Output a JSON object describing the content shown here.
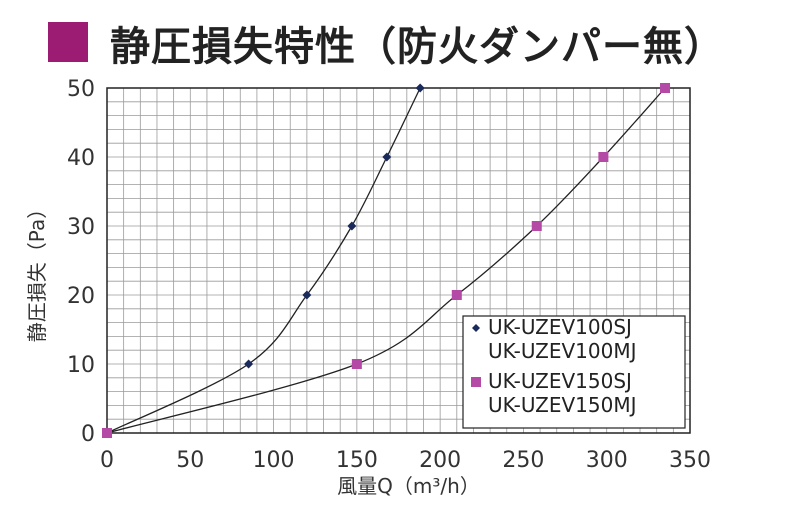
{
  "title": "静圧損失特性（防火ダンパー無）",
  "colors": {
    "accent": "#9c1b73",
    "series1": "#1a2a5a",
    "series2": "#b54aa6",
    "grid": "#9a9a9a"
  },
  "chart_data": {
    "type": "line",
    "xlabel": "風量Q（m³/h）",
    "ylabel": "静圧損失（Pa）",
    "xlim": [
      0,
      350
    ],
    "ylim": [
      0,
      50
    ],
    "xticks": [
      0,
      50,
      100,
      150,
      200,
      250,
      300,
      350
    ],
    "yticks": [
      0,
      10,
      20,
      30,
      40,
      50
    ],
    "xtick_labels": [
      "0",
      "50",
      "100",
      "150",
      "200",
      "250",
      "300",
      "350"
    ],
    "ytick_labels": [
      "0",
      "10",
      "20",
      "30",
      "40",
      "50"
    ],
    "grid": true,
    "legend": "bottom-right",
    "series": [
      {
        "name_lines": [
          "UK-UZEV100SJ",
          "UK-UZEV100MJ"
        ],
        "marker": "diamond",
        "color": "#1a2a5a",
        "points": [
          [
            0,
            0
          ],
          [
            85,
            10
          ],
          [
            120,
            20
          ],
          [
            147,
            30
          ],
          [
            168,
            40
          ],
          [
            188,
            50
          ]
        ]
      },
      {
        "name_lines": [
          "UK-UZEV150SJ",
          "UK-UZEV150MJ"
        ],
        "marker": "square",
        "color": "#b54aa6",
        "points": [
          [
            0,
            0
          ],
          [
            150,
            10
          ],
          [
            210,
            20
          ],
          [
            258,
            30
          ],
          [
            298,
            40
          ],
          [
            335,
            50
          ]
        ]
      }
    ]
  }
}
